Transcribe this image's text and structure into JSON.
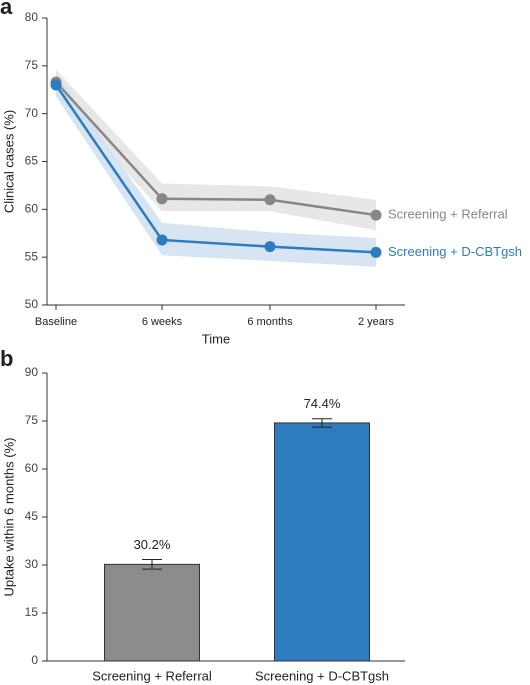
{
  "chart_data": [
    {
      "type": "line",
      "panel": "a",
      "xlabel": "Time",
      "ylabel": "Clinical cases (%)",
      "categories": [
        "Baseline",
        "6 weeks",
        "6 months",
        "2 years"
      ],
      "ylim": [
        50,
        80
      ],
      "yticks": [
        50,
        55,
        60,
        65,
        70,
        75,
        80
      ],
      "series": [
        {
          "name": "Screening + Referral",
          "color": "#878787",
          "band_color": "#e3e3e3",
          "values": [
            73.3,
            61.1,
            61.0,
            59.4
          ],
          "lower": [
            72.0,
            59.8,
            59.8,
            57.8
          ],
          "upper": [
            74.6,
            62.7,
            62.4,
            61.0
          ]
        },
        {
          "name": "Screening + D-CBTgsh",
          "color": "#2e7bbf",
          "band_color": "#cfe0ef",
          "values": [
            73.0,
            56.8,
            56.1,
            55.5
          ],
          "lower": [
            71.8,
            55.2,
            54.6,
            54.0
          ],
          "upper": [
            74.2,
            58.6,
            57.6,
            57.0
          ]
        }
      ]
    },
    {
      "type": "bar",
      "panel": "b",
      "ylabel": "Uptake within 6 months (%)",
      "categories": [
        "Screening + Referral",
        "Screening + D-CBTgsh"
      ],
      "values": [
        30.2,
        74.4
      ],
      "value_labels": [
        "30.2%",
        "74.4%"
      ],
      "errors": [
        1.5,
        1.3
      ],
      "colors": [
        "#8c8c8c",
        "#2e7bbf"
      ],
      "ylim": [
        0,
        90
      ],
      "yticks": [
        0,
        15,
        30,
        45,
        60,
        75,
        90
      ]
    }
  ]
}
